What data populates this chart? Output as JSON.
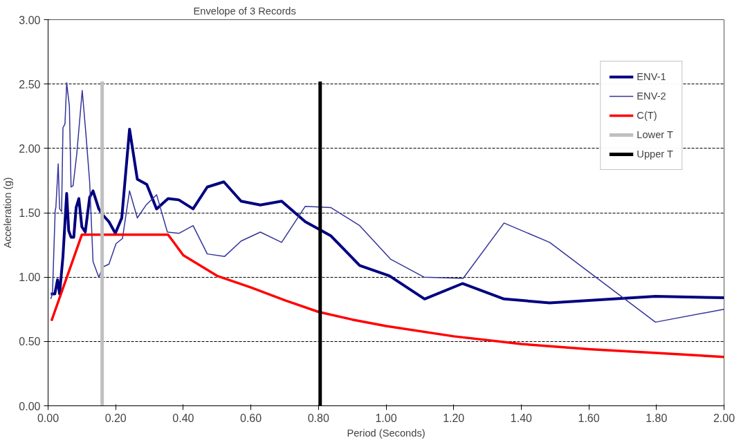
{
  "chart_data": {
    "type": "line",
    "title": "Envelope of 3 Records",
    "xlabel": "Period (Seconds)",
    "ylabel": "Acceleration (g)",
    "xlim": [
      0,
      2
    ],
    "xticks": [
      {
        "value": 0,
        "label": "0.00"
      },
      {
        "value": 0.2,
        "label": "0.20"
      },
      {
        "value": 0.4,
        "label": "0.40"
      },
      {
        "value": 0.6,
        "label": "0.60"
      },
      {
        "value": 0.8,
        "label": "0.80"
      },
      {
        "value": 1,
        "label": "1.00"
      },
      {
        "value": 1.2,
        "label": "1.20"
      },
      {
        "value": 1.4,
        "label": "1.40"
      },
      {
        "value": 1.6,
        "label": "1.60"
      },
      {
        "value": 1.8,
        "label": "1.80"
      },
      {
        "value": 2,
        "label": "2.00"
      }
    ],
    "ylim": [
      0,
      3
    ],
    "yticks": [
      {
        "value": 0,
        "label": "0.00"
      },
      {
        "value": 0.5,
        "label": "0.50"
      },
      {
        "value": 1,
        "label": "1.00"
      },
      {
        "value": 1.5,
        "label": "1.50"
      },
      {
        "value": 2,
        "label": "2.00"
      },
      {
        "value": 2.5,
        "label": "2.50"
      },
      {
        "value": 3,
        "label": "3.00"
      }
    ],
    "grid": "y",
    "legend": "top right",
    "series": [
      {
        "name": "ENV-1",
        "color": "#000080",
        "x": [
          0.008,
          0.02,
          0.028,
          0.034,
          0.044,
          0.055,
          0.061,
          0.068,
          0.076,
          0.083,
          0.091,
          0.1,
          0.11,
          0.123,
          0.133,
          0.15,
          0.163,
          0.18,
          0.199,
          0.218,
          0.241,
          0.264,
          0.292,
          0.321,
          0.355,
          0.387,
          0.429,
          0.471,
          0.52,
          0.571,
          0.628,
          0.691,
          0.761,
          0.803,
          0.837,
          0.922,
          1.01,
          1.114,
          1.226,
          1.349,
          1.484,
          1.797,
          2.0
        ],
        "values": [
          0.87,
          0.87,
          0.98,
          0.87,
          1.16,
          1.65,
          1.36,
          1.31,
          1.31,
          1.54,
          1.61,
          1.39,
          1.35,
          1.62,
          1.67,
          1.53,
          1.48,
          1.43,
          1.34,
          1.46,
          2.15,
          1.76,
          1.72,
          1.53,
          1.61,
          1.6,
          1.53,
          1.7,
          1.74,
          1.59,
          1.56,
          1.59,
          1.43,
          1.37,
          1.32,
          1.09,
          1.01,
          0.83,
          0.95,
          0.83,
          0.8,
          0.85,
          0.84
        ]
      },
      {
        "name": "ENV-2",
        "color": "#333399",
        "x": [
          0.008,
          0.013,
          0.021,
          0.023,
          0.03,
          0.034,
          0.04,
          0.044,
          0.05,
          0.055,
          0.063,
          0.068,
          0.074,
          0.085,
          0.101,
          0.112,
          0.123,
          0.133,
          0.15,
          0.163,
          0.18,
          0.201,
          0.22,
          0.241,
          0.264,
          0.29,
          0.321,
          0.353,
          0.387,
          0.429,
          0.471,
          0.522,
          0.571,
          0.628,
          0.691,
          0.761,
          0.837,
          0.922,
          1.013,
          1.112,
          1.228,
          1.349,
          1.484,
          1.797,
          2.0
        ],
        "values": [
          0.83,
          0.87,
          1.52,
          1.54,
          1.88,
          1.53,
          1.51,
          2.16,
          2.19,
          2.51,
          2.33,
          1.7,
          1.71,
          1.96,
          2.45,
          2.11,
          1.74,
          1.12,
          1.0,
          1.08,
          1.1,
          1.26,
          1.3,
          1.67,
          1.46,
          1.56,
          1.64,
          1.35,
          1.34,
          1.4,
          1.18,
          1.16,
          1.28,
          1.35,
          1.27,
          1.55,
          1.54,
          1.4,
          1.14,
          1.0,
          0.99,
          1.42,
          1.27,
          0.65,
          0.75
        ]
      },
      {
        "name": "C(T)",
        "color": "#ff0000",
        "x": [
          0.01,
          0.1,
          0.355,
          0.4,
          0.5,
          0.6,
          0.7,
          0.8,
          0.9,
          1.0,
          1.2,
          1.4,
          1.6,
          1.8,
          2.0
        ],
        "values": [
          0.66,
          1.33,
          1.33,
          1.17,
          1.01,
          0.92,
          0.82,
          0.73,
          0.67,
          0.62,
          0.54,
          0.48,
          0.44,
          0.41,
          0.38
        ]
      },
      {
        "name": "Lower T",
        "color": "#c0c0c0",
        "x": [
          0.16,
          0.16
        ],
        "values": [
          0,
          2.52
        ]
      },
      {
        "name": "Upper T",
        "color": "#000000",
        "x": [
          0.805,
          0.805
        ],
        "values": [
          0,
          2.52
        ]
      }
    ]
  }
}
